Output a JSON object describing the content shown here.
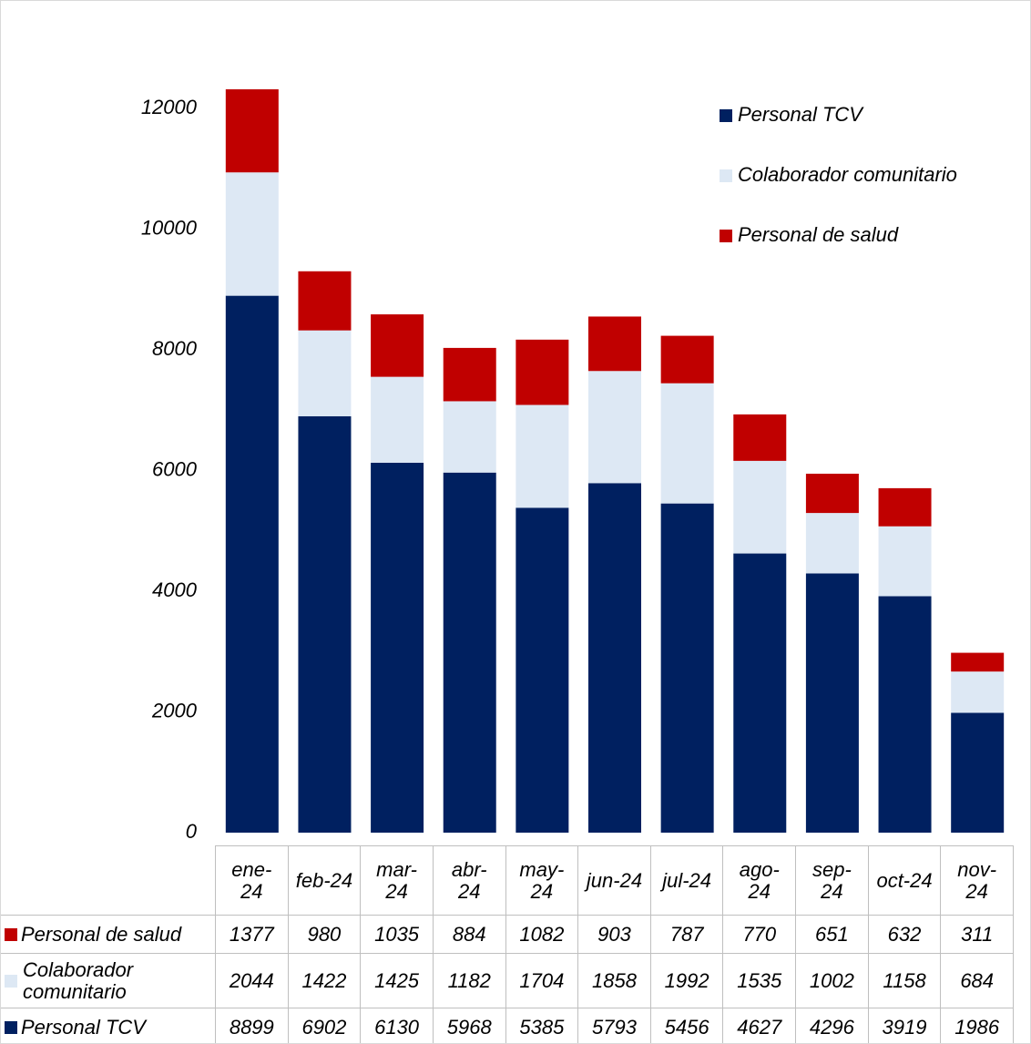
{
  "chart_data": {
    "type": "bar",
    "stacked": true,
    "categories": [
      "ene-24",
      "feb-24",
      "mar-24",
      "abr-24",
      "may-24",
      "jun-24",
      "jul-24",
      "ago-24",
      "sep-24",
      "oct-24",
      "nov-24"
    ],
    "series": [
      {
        "name": "Personal TCV",
        "color": "#002060",
        "values": [
          8899,
          6902,
          6130,
          5968,
          5385,
          5793,
          5456,
          4627,
          4296,
          3919,
          1986
        ]
      },
      {
        "name": "Colaborador comunitario",
        "color": "#dde8f4",
        "values": [
          2044,
          1422,
          1425,
          1182,
          1704,
          1858,
          1992,
          1535,
          1002,
          1158,
          684
        ]
      },
      {
        "name": "Personal de salud",
        "color": "#c00000",
        "values": [
          1377,
          980,
          1035,
          884,
          1082,
          903,
          787,
          770,
          651,
          632,
          311
        ]
      }
    ],
    "ylim": [
      0,
      13000
    ],
    "yticks": [
      0,
      2000,
      4000,
      6000,
      8000,
      10000,
      12000
    ],
    "grid": false,
    "legend": "upper right",
    "data_table": true
  }
}
